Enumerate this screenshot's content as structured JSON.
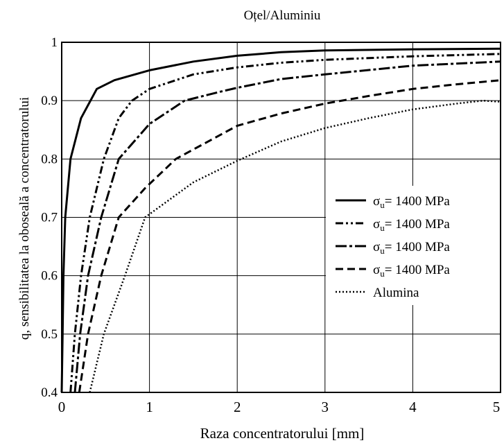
{
  "chart_data": {
    "type": "line",
    "title": "Oțel/Aluminiu",
    "xlabel": "Raza concentratorului [mm]",
    "ylabel": "q, sensibilitatea la oboseală a concentratorului",
    "xlim": [
      0,
      5
    ],
    "ylim": [
      0.4,
      1
    ],
    "x_ticks": [
      "0",
      "1",
      "2",
      "3",
      "4",
      "5"
    ],
    "y_ticks": [
      "0.4",
      "0.5",
      "0.6",
      "0.7",
      "0.8",
      "0.9",
      "1"
    ],
    "grid": true,
    "legend_position": "right",
    "series": [
      {
        "name": "σu= 1400 MPa",
        "legend_symbol": "σ",
        "legend_sub": "u",
        "legend_value": "= 1400 MPa",
        "dash": "solid",
        "points": [
          [
            0.0,
            0.4
          ],
          [
            0.01,
            0.5
          ],
          [
            0.02,
            0.6
          ],
          [
            0.04,
            0.7
          ],
          [
            0.1,
            0.8
          ],
          [
            0.22,
            0.87
          ],
          [
            0.4,
            0.92
          ],
          [
            0.6,
            0.935
          ],
          [
            1.0,
            0.952
          ],
          [
            1.5,
            0.967
          ],
          [
            2.0,
            0.977
          ],
          [
            2.5,
            0.983
          ],
          [
            3.0,
            0.986
          ],
          [
            4.0,
            0.988
          ],
          [
            5.0,
            0.989
          ]
        ]
      },
      {
        "name": "σu= 1400 MPa",
        "legend_symbol": "σ",
        "legend_sub": "u",
        "legend_value": "= 1400 MPa",
        "dash": "dash-dot-dot",
        "points": [
          [
            0.1,
            0.4
          ],
          [
            0.15,
            0.5
          ],
          [
            0.22,
            0.6
          ],
          [
            0.32,
            0.7
          ],
          [
            0.48,
            0.8
          ],
          [
            0.65,
            0.87
          ],
          [
            0.8,
            0.9
          ],
          [
            1.0,
            0.92
          ],
          [
            1.5,
            0.945
          ],
          [
            2.0,
            0.957
          ],
          [
            2.5,
            0.965
          ],
          [
            3.0,
            0.97
          ],
          [
            4.0,
            0.976
          ],
          [
            5.0,
            0.98
          ]
        ]
      },
      {
        "name": "σu= 1400 MPa",
        "legend_symbol": "σ",
        "legend_sub": "u",
        "legend_value": "= 1400 MPa",
        "dash": "dash-dot",
        "points": [
          [
            0.15,
            0.4
          ],
          [
            0.21,
            0.5
          ],
          [
            0.3,
            0.6
          ],
          [
            0.45,
            0.7
          ],
          [
            0.65,
            0.8
          ],
          [
            1.0,
            0.86
          ],
          [
            1.4,
            0.9
          ],
          [
            1.8,
            0.915
          ],
          [
            2.0,
            0.922
          ],
          [
            2.5,
            0.937
          ],
          [
            3.0,
            0.945
          ],
          [
            4.0,
            0.96
          ],
          [
            5.0,
            0.967
          ]
        ]
      },
      {
        "name": "σu= 1400 MPa",
        "legend_symbol": "σ",
        "legend_sub": "u",
        "legend_value": "= 1400 MPa",
        "dash": "dashed",
        "points": [
          [
            0.2,
            0.4
          ],
          [
            0.3,
            0.5
          ],
          [
            0.45,
            0.6
          ],
          [
            0.65,
            0.7
          ],
          [
            0.95,
            0.75
          ],
          [
            1.3,
            0.8
          ],
          [
            2.0,
            0.857
          ],
          [
            2.5,
            0.878
          ],
          [
            3.0,
            0.895
          ],
          [
            3.5,
            0.908
          ],
          [
            4.0,
            0.92
          ],
          [
            4.5,
            0.928
          ],
          [
            5.0,
            0.935
          ]
        ]
      },
      {
        "name": "Alumina",
        "legend_symbol": "",
        "legend_sub": "",
        "legend_value": "Alumina",
        "dash": "dotted",
        "points": [
          [
            0.32,
            0.4
          ],
          [
            0.48,
            0.5
          ],
          [
            0.72,
            0.6
          ],
          [
            0.95,
            0.7
          ],
          [
            1.5,
            0.76
          ],
          [
            2.0,
            0.797
          ],
          [
            2.5,
            0.83
          ],
          [
            3.0,
            0.853
          ],
          [
            3.5,
            0.87
          ],
          [
            4.0,
            0.885
          ],
          [
            4.5,
            0.895
          ],
          [
            4.8,
            0.9
          ],
          [
            5.0,
            0.898
          ]
        ]
      }
    ]
  }
}
